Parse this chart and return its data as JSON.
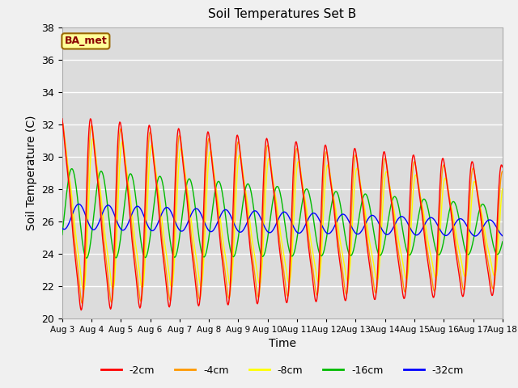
{
  "title": "Soil Temperatures Set B",
  "xlabel": "Time",
  "ylabel": "Soil Temperature (C)",
  "annotation": "BA_met",
  "ylim": [
    20,
    38
  ],
  "n_days": 15,
  "samples_per_day": 48,
  "base_mean": 26.5,
  "base_drift": -0.07,
  "fig_bg_color": "#f0f0f0",
  "plot_bg_color": "#dcdcdc",
  "grid_color": "#ffffff",
  "colors": {
    "-2cm": "#ff0000",
    "-4cm": "#ff9900",
    "-8cm": "#ffff00",
    "-16cm": "#00bb00",
    "-32cm": "#0000ff"
  },
  "xtick_labels": [
    "Aug 3",
    "Aug 4",
    "Aug 5",
    "Aug 6",
    "Aug 7",
    "Aug 8",
    "Aug 9",
    "Aug 10",
    "Aug 11",
    "Aug 12",
    "Aug 13",
    "Aug 14",
    "Aug 15",
    "Aug 16",
    "Aug 17",
    "Aug 18"
  ]
}
